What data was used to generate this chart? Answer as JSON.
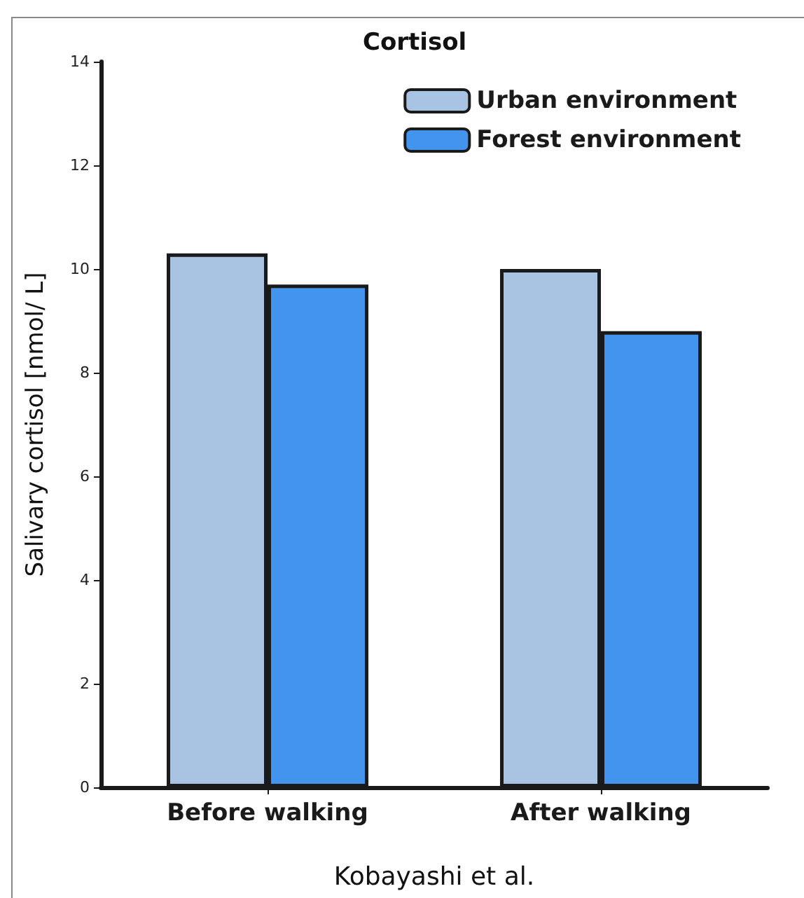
{
  "chart_data": {
    "type": "bar",
    "title": "Cortisol",
    "xlabel": "Kobayashi et al.",
    "ylabel": "Salivary cortisol [nmol/ L]",
    "categories": [
      "Before walking",
      "After walking"
    ],
    "series": [
      {
        "name": "Urban environment",
        "color": "#a8c4e2",
        "values": [
          10.3,
          10.0
        ]
      },
      {
        "name": "Forest environment",
        "color": "#4294ec",
        "values": [
          9.7,
          8.8
        ]
      }
    ],
    "ylim": [
      0,
      14
    ],
    "yticks": [
      0,
      2,
      4,
      6,
      8,
      10,
      12,
      14
    ],
    "grid": false,
    "legend": "top right"
  }
}
